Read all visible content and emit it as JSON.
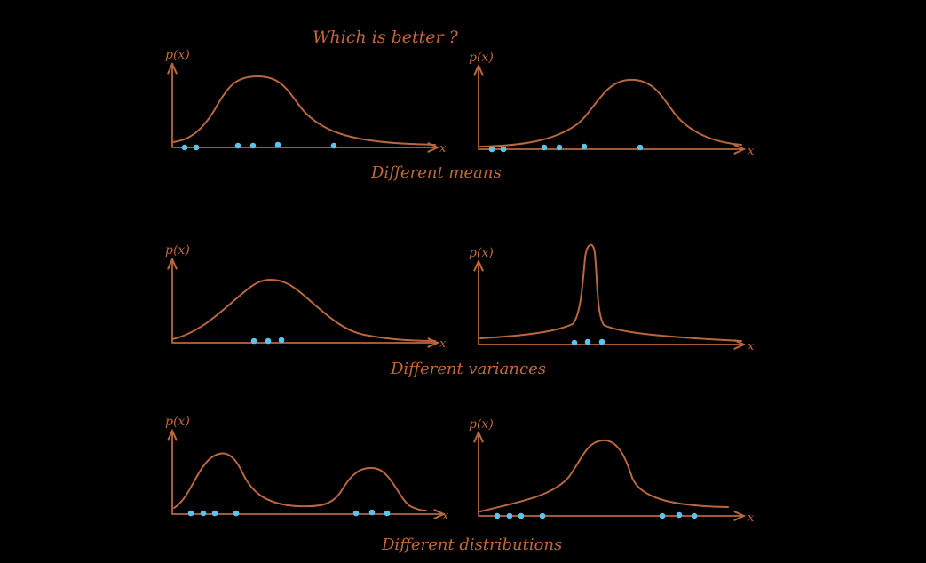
{
  "title": "Which   is better ?",
  "axis_labels": {
    "y": "p(x)",
    "x": "x"
  },
  "captions": {
    "means": "Different   means",
    "variances": "Different   variances",
    "distributions": "Different   distributions"
  },
  "colors": {
    "background": "#000000",
    "stroke": "#b9673e",
    "dots": "#5cc3ee"
  }
}
